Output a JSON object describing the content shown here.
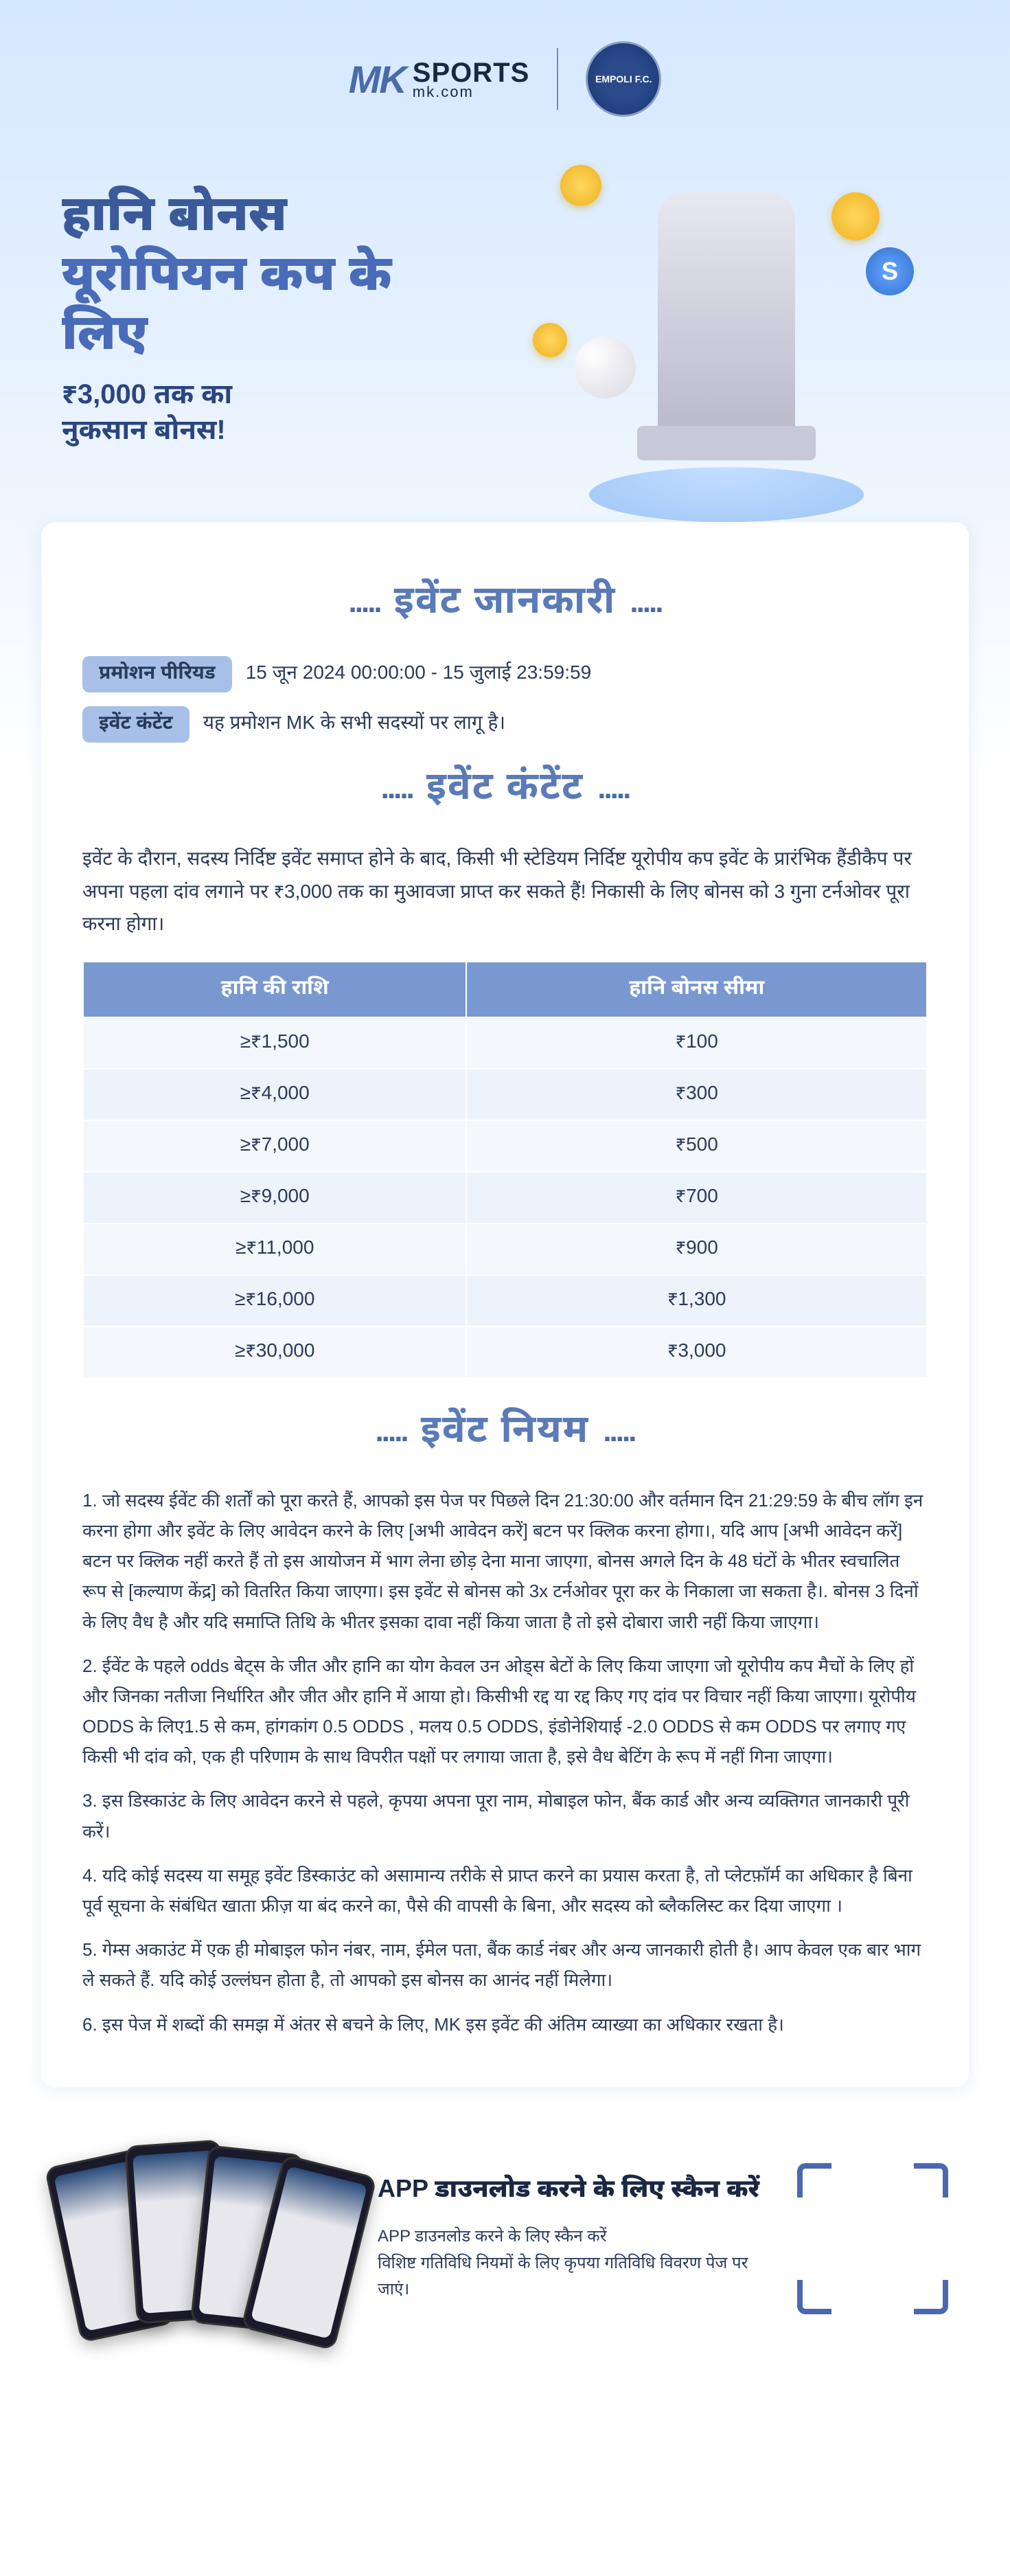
{
  "logo": {
    "brand_mk": "MK",
    "brand_sports": "SPORTS",
    "brand_url": "mk.com",
    "club_name": "EMPOLI F.C."
  },
  "hero": {
    "title_line1": "हानि बोनस",
    "title_line2": "यूरोपियन कप के लिए",
    "subtitle_line1": "₹3,000 तक का",
    "subtitle_line2": "नुकसान बोनस!",
    "s_coin": "S"
  },
  "sections": {
    "event_info_heading": "इवेंट जानकारी",
    "event_content_heading": "इवेंट कंटेंट",
    "event_rules_heading": "इवेंट नियम"
  },
  "info": {
    "period_label": "प्रमोशन पीरियड",
    "period_value": "15 जून 2024 00:00:00 - 15 जुलाई 23:59:59",
    "content_label": "इवेंट कंटेंट",
    "content_value": "यह प्रमोशन MK के सभी सदस्यों पर लागू है।"
  },
  "event_desc": "इवेंट के दौरान, सदस्य निर्दिष्ट इवेंट समाप्त होने के बाद, किसी भी स्टेडियम निर्दिष्ट यूरोपीय कप इवेंट के प्रारंभिक हैंडीकैप पर अपना पहला दांव लगाने पर ₹3,000 तक का मुआवजा प्राप्त कर सकते हैं! निकासी के लिए बोनस को 3 गुना टर्नओवर पूरा करना होगा।",
  "table": {
    "col1_header": "हानि की राशि",
    "col2_header": "हानि बोनस सीमा",
    "rows": [
      {
        "loss": "≥₹1,500",
        "bonus": "₹100"
      },
      {
        "loss": "≥₹4,000",
        "bonus": "₹300"
      },
      {
        "loss": "≥₹7,000",
        "bonus": "₹500"
      },
      {
        "loss": "≥₹9,000",
        "bonus": "₹700"
      },
      {
        "loss": "≥₹11,000",
        "bonus": "₹900"
      },
      {
        "loss": "≥₹16,000",
        "bonus": "₹1,300"
      },
      {
        "loss": "≥₹30,000",
        "bonus": "₹3,000"
      }
    ]
  },
  "rules": [
    "जो सदस्य ईवेंट की शर्तों को पूरा करते हैं, आपको इस पेज पर पिछले दिन 21:30:00 और वर्तमान दिन 21:29:59 के बीच लॉग इन करना होगा और इवेंट के लिए आवेदन करने के लिए [अभी आवेदन करें] बटन पर क्लिक करना होगा।, यदि आप [अभी आवेदन करें] बटन पर क्लिक नहीं करते हैं तो इस आयोजन में भाग लेना छोड़ देना माना जाएगा, बोनस अगले दिन के 48 घंटों के भीतर स्वचालित रूप से [कल्याण केंद्र] को वितरित किया जाएगा। इस इवेंट से बोनस को 3x टर्नओवर पूरा कर के निकाला जा सकता है।. बोनस 3 दिनों के लिए वैध है और यदि समाप्ति तिथि के भीतर इसका दावा नहीं किया जाता है तो इसे दोबारा जारी नहीं किया जाएगा।",
    "ईवेंट के पहले odds बेट्स के जीत और हानि का योग केवल उन ओड्स बेटों के लिए किया जाएगा जो यूरोपीय कप मैचों के लिए हों और जिनका नतीजा निर्धारित और जीत और हानि में आया हो। किसीभी रद्द या रद्द किए गए दांव पर विचार नहीं किया जाएगा। यूरोपीय ODDS के लिए1.5 से कम, हांगकांग 0.5 ODDS , मलय 0.5 ODDS, इंडोनेशियाई -2.0 ODDS से कम ODDS पर लगाए गए किसी भी दांव को, एक ही परिणाम के साथ विपरीत पक्षों पर लगाया जाता है, इसे वैध बेटिंग के रूप में नहीं गिना जाएगा।",
    "इस डिस्काउंट के लिए आवेदन करने से पहले, कृपया अपना पूरा नाम, मोबाइल फोन, बैंक कार्ड और अन्य व्यक्तिगत जानकारी पूरी करें।",
    "यदि कोई सदस्य या समूह इवेंट डिस्काउंट को असामान्य तरीके से प्राप्त करने का प्रयास करता है, तो प्लेटफ़ॉर्म का अधिकार है बिना पूर्व सूचना के संबंधित खाता फ्रीज़ या बंद करने का, पैसे की वापसी के बिना, और सदस्य को ब्लैकलिस्ट कर दिया जाएगा ।",
    "गेम्स अकाउंट में एक ही मोबाइल फोन नंबर, नाम, ईमेल पता, बैंक कार्ड नंबर और अन्य जानकारी होती है। आप केवल एक बार भाग ले सकते हैं. यदि कोई उल्लंघन होता है, तो आपको इस बोनस का आनंद नहीं मिलेगा।",
    "इस पेज में शब्दों की समझ में अंतर से बचने के लिए, MK इस इवेंट की अंतिम व्याख्या का अधिकार रखता है।"
  ],
  "footer": {
    "heading": "APP  डाउनलोड करने के लिए स्कैन करें",
    "line1": "APP  डाउनलोड करने के लिए स्कैन करें",
    "line2": "विशिष्ट गतिविधि नियमों के लिए कृपया गतिविधि विवरण पेज पर जाएं।"
  },
  "colors": {
    "primary": "#4a6bb8",
    "dark_text": "#2a3a5a",
    "table_header_bg": "#7a98d0",
    "table_row_bg": "#f4f8fd",
    "gold": "#f0b020"
  }
}
